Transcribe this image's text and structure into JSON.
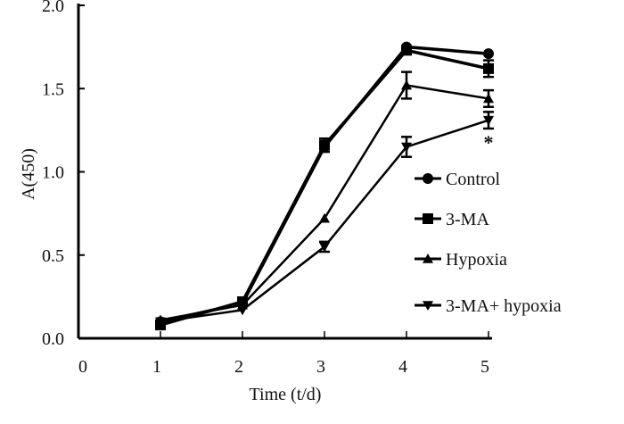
{
  "chart_data": {
    "type": "line",
    "title": "",
    "xlabel": "Time (t/d)",
    "ylabel": "A(450)",
    "xlim": [
      0,
      5
    ],
    "ylim": [
      0,
      2.0
    ],
    "x_ticks": [
      "0",
      "1",
      "2",
      "3",
      "4",
      "5"
    ],
    "y_ticks": [
      "0.0",
      "0.5",
      "1.0",
      "1.5",
      "2.0"
    ],
    "x": [
      1,
      2,
      3,
      4,
      5
    ],
    "legend_position": "right",
    "series": [
      {
        "name": "Control",
        "marker": "circle",
        "values": [
          0.1,
          0.21,
          1.15,
          1.75,
          1.71
        ],
        "errors": [
          0.01,
          0.01,
          0.02,
          0.02,
          0.02
        ]
      },
      {
        "name": "3-MA",
        "marker": "square",
        "values": [
          0.08,
          0.22,
          1.16,
          1.73,
          1.62
        ],
        "errors": [
          0.01,
          0.01,
          0.04,
          0.02,
          0.05
        ]
      },
      {
        "name": "Hypoxia",
        "marker": "triangle-up",
        "values": [
          0.11,
          0.2,
          0.72,
          1.52,
          1.44
        ],
        "errors": [
          0.01,
          0.01,
          0.02,
          0.08,
          0.05
        ]
      },
      {
        "name": "3-MA+ hypoxia",
        "marker": "triangle-down",
        "values": [
          0.1,
          0.17,
          0.55,
          1.15,
          1.31
        ],
        "errors": [
          0.01,
          0.01,
          0.03,
          0.06,
          0.05
        ]
      }
    ],
    "annotations": [
      {
        "text": "*",
        "x": 5,
        "y": 1.2
      }
    ]
  }
}
